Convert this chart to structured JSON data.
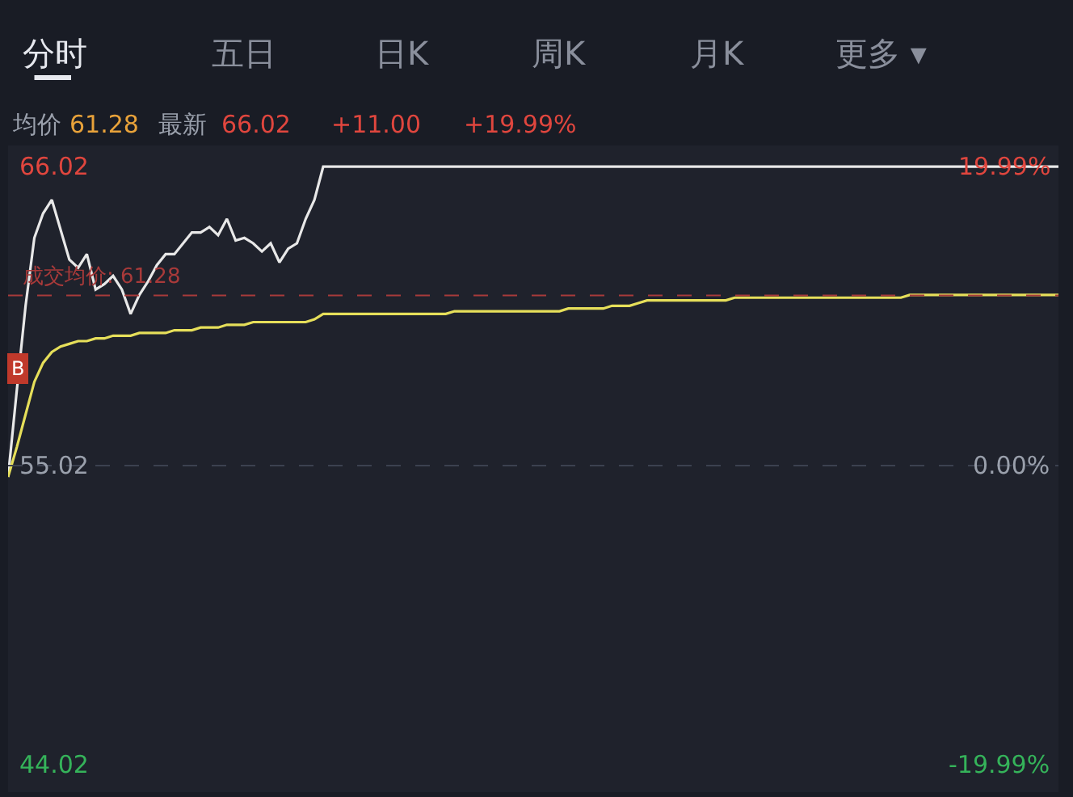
{
  "chart_data": {
    "type": "line",
    "annotations": [
      "分时",
      "五日",
      "日K",
      "周K",
      "月K",
      "更多 ▾",
      "均价",
      "61.28",
      "最新",
      "66.02",
      "+11.00",
      "+19.99%",
      {
        "text": "B",
        "y": 58.6
      }
    ],
    "categories": [
      null,
      null,
      null,
      null,
      null,
      null,
      null,
      null,
      null,
      null,
      null,
      null,
      null,
      null,
      null,
      null,
      null,
      null,
      null,
      null,
      null,
      null,
      null,
      null,
      null,
      null,
      null,
      null,
      null,
      null,
      null,
      null,
      null,
      null,
      null,
      null,
      null,
      null,
      null,
      null,
      null,
      null,
      null,
      null,
      null,
      null,
      null,
      null,
      null,
      null,
      null,
      null,
      null,
      null,
      null,
      null,
      null,
      null,
      null,
      null,
      null,
      null,
      null,
      null,
      null,
      null,
      null,
      null,
      null,
      null,
      null,
      null,
      null,
      null,
      null,
      null,
      null,
      null,
      null,
      null,
      null,
      null,
      null,
      null,
      null,
      null,
      null,
      null,
      null,
      null,
      null,
      null,
      null,
      null,
      null,
      null,
      null,
      null,
      null,
      null,
      null,
      null,
      null,
      null,
      null,
      null,
      null,
      null,
      null,
      null,
      null,
      null,
      null,
      null,
      null,
      null,
      null,
      null,
      null,
      null,
      null
    ],
    "series": [
      {
        "color": "#e8e8e8",
        "values": [
          54.6,
          57.8,
          60.9,
          63.4,
          64.3,
          64.8,
          63.7,
          62.6,
          62.3,
          62.8,
          61.5,
          61.7,
          62.0,
          61.5,
          60.6,
          61.3,
          61.8,
          62.4,
          62.8,
          62.8,
          63.2,
          63.6,
          63.6,
          63.8,
          63.5,
          64.1,
          63.3,
          63.4,
          63.2,
          62.9,
          63.2,
          62.5,
          63.0,
          63.2,
          64.1,
          64.8,
          66.02,
          66.02,
          66.02,
          66.02,
          66.02,
          66.02,
          66.02,
          66.02,
          66.02,
          66.02,
          66.02,
          66.02,
          66.02,
          66.02,
          66.02,
          66.02,
          66.02,
          66.02,
          66.02,
          66.02,
          66.02,
          66.02,
          66.02,
          66.02,
          66.02,
          66.02,
          66.02,
          66.02,
          66.02,
          66.02,
          66.02,
          66.02,
          66.02,
          66.02,
          66.02,
          66.02,
          66.02,
          66.02,
          66.02,
          66.02,
          66.02,
          66.02,
          66.02,
          66.02,
          66.02,
          66.02,
          66.02,
          66.02,
          66.02,
          66.02,
          66.02,
          66.02,
          66.02,
          66.02,
          66.02,
          66.02,
          66.02,
          66.02,
          66.02,
          66.02,
          66.02,
          66.02,
          66.02,
          66.02,
          66.02,
          66.02,
          66.02,
          66.02,
          66.02,
          66.02,
          66.02,
          66.02,
          66.02,
          66.02,
          66.02,
          66.02,
          66.02,
          66.02,
          66.02,
          66.02,
          66.02,
          66.02,
          66.02,
          66.02,
          66.02
        ]
      },
      {
        "color": "#e6df5a",
        "values": [
          54.6,
          55.7,
          56.9,
          58.1,
          58.8,
          59.2,
          59.4,
          59.5,
          59.6,
          59.6,
          59.7,
          59.7,
          59.8,
          59.8,
          59.8,
          59.9,
          59.9,
          59.9,
          59.9,
          60.0,
          60.0,
          60.0,
          60.1,
          60.1,
          60.1,
          60.2,
          60.2,
          60.2,
          60.3,
          60.3,
          60.3,
          60.3,
          60.3,
          60.3,
          60.3,
          60.4,
          60.6,
          60.6,
          60.6,
          60.6,
          60.6,
          60.6,
          60.6,
          60.6,
          60.6,
          60.6,
          60.6,
          60.6,
          60.6,
          60.6,
          60.6,
          60.7,
          60.7,
          60.7,
          60.7,
          60.7,
          60.7,
          60.7,
          60.7,
          60.7,
          60.7,
          60.7,
          60.7,
          60.7,
          60.8,
          60.8,
          60.8,
          60.8,
          60.8,
          60.9,
          60.9,
          60.9,
          61.0,
          61.1,
          61.1,
          61.1,
          61.1,
          61.1,
          61.1,
          61.1,
          61.1,
          61.1,
          61.1,
          61.2,
          61.2,
          61.2,
          61.2,
          61.2,
          61.2,
          61.2,
          61.2,
          61.2,
          61.2,
          61.2,
          61.2,
          61.2,
          61.2,
          61.2,
          61.2,
          61.2,
          61.2,
          61.2,
          61.2,
          61.3,
          61.3,
          61.3,
          61.3,
          61.3,
          61.3,
          61.3,
          61.3,
          61.3,
          61.3,
          61.3,
          61.3,
          61.3,
          61.3,
          61.3,
          61.3,
          61.3,
          61.3
        ]
      }
    ],
    "ylim": [
      43.0,
      66.8
    ],
    "yticks": [
      44.02,
      55.02,
      66.02
    ],
    "y2lim": [
      -21.85,
      21.41
    ],
    "y2ticks": [
      {
        "value": -19.99,
        "label": "-19.99%"
      },
      {
        "value": 0,
        "label": "0.00%"
      },
      {
        "value": 19.99,
        "label": "19.99%"
      }
    ],
    "tick_labels": "y",
    "ref_lines": [
      {
        "axis": "y",
        "value": 61.28,
        "label": "成交均价: 61.28",
        "color": "#a83a3a",
        "line_style": "dashed"
      },
      {
        "axis": "y",
        "value": 55.02,
        "color": "#3c4150",
        "line_style": "dashed"
      }
    ],
    "grid": false,
    "marker": "none",
    "line_style": "solid"
  }
}
